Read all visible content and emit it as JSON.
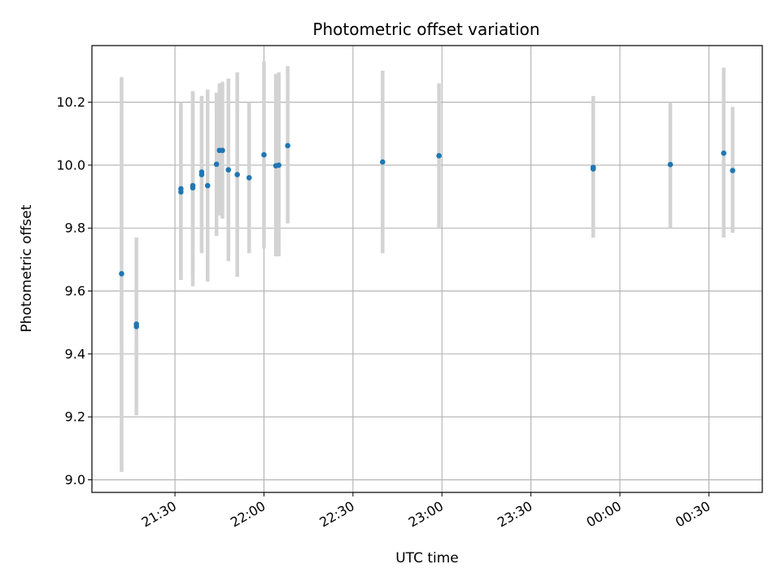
{
  "chart_data": {
    "type": "scatter",
    "title": "Photometric offset variation",
    "xlabel": "UTC time",
    "ylabel": "Photometric offset",
    "x_axis_type": "time",
    "xlim": [
      "21:02",
      "00:48"
    ],
    "ylim": [
      8.96,
      10.38
    ],
    "x_ticks": [
      {
        "time": "21:30",
        "label": "21:30"
      },
      {
        "time": "22:00",
        "label": "22:00"
      },
      {
        "time": "22:30",
        "label": "22:30"
      },
      {
        "time": "23:00",
        "label": "23:00"
      },
      {
        "time": "23:30",
        "label": "23:30"
      },
      {
        "time": "00:00",
        "label": "00:00"
      },
      {
        "time": "00:30",
        "label": "00:30"
      }
    ],
    "y_ticks": [
      9.0,
      9.2,
      9.4,
      9.6,
      9.8,
      10.0,
      10.2
    ],
    "y_tick_labels": [
      "9.0",
      "9.2",
      "9.4",
      "9.6",
      "9.8",
      "10.0",
      "10.2"
    ],
    "x_tick_rotation": "30°",
    "grid": true,
    "colors": {
      "points": "#1f77b4",
      "errorbars": "#d3d3d3",
      "grid": "#b0b0b0"
    },
    "points": [
      {
        "x": "21:12",
        "y": 9.655,
        "ylo": 9.025,
        "yhi": 10.28
      },
      {
        "x": "21:17",
        "y": 9.495,
        "ylo": 9.225,
        "yhi": 9.77
      },
      {
        "x": "21:17",
        "y": 9.487,
        "ylo": 9.205,
        "yhi": 9.77
      },
      {
        "x": "21:32",
        "y": 9.915,
        "ylo": 9.635,
        "yhi": 10.2
      },
      {
        "x": "21:32",
        "y": 9.925,
        "ylo": 9.665,
        "yhi": 10.19
      },
      {
        "x": "21:36",
        "y": 9.928,
        "ylo": 9.615,
        "yhi": 10.235
      },
      {
        "x": "21:36",
        "y": 9.935,
        "ylo": 9.645,
        "yhi": 10.23
      },
      {
        "x": "21:39",
        "y": 9.97,
        "ylo": 9.72,
        "yhi": 10.22
      },
      {
        "x": "21:39",
        "y": 9.978,
        "ylo": 9.73,
        "yhi": 10.22
      },
      {
        "x": "21:41",
        "y": 9.935,
        "ylo": 9.63,
        "yhi": 10.24
      },
      {
        "x": "21:44",
        "y": 10.003,
        "ylo": 9.775,
        "yhi": 10.23
      },
      {
        "x": "21:45",
        "y": 10.047,
        "ylo": 9.84,
        "yhi": 10.26
      },
      {
        "x": "21:46",
        "y": 10.047,
        "ylo": 9.83,
        "yhi": 10.265
      },
      {
        "x": "21:48",
        "y": 9.985,
        "ylo": 9.695,
        "yhi": 10.275
      },
      {
        "x": "21:51",
        "y": 9.97,
        "ylo": 9.645,
        "yhi": 10.295
      },
      {
        "x": "21:55",
        "y": 9.96,
        "ylo": 9.72,
        "yhi": 10.2
      },
      {
        "x": "22:00",
        "y": 10.033,
        "ylo": 9.735,
        "yhi": 10.33
      },
      {
        "x": "22:04",
        "y": 9.998,
        "ylo": 9.71,
        "yhi": 10.29
      },
      {
        "x": "22:05",
        "y": 10.0,
        "ylo": 9.71,
        "yhi": 10.295
      },
      {
        "x": "22:08",
        "y": 10.062,
        "ylo": 9.815,
        "yhi": 10.315
      },
      {
        "x": "22:40",
        "y": 10.01,
        "ylo": 9.72,
        "yhi": 10.3
      },
      {
        "x": "22:59",
        "y": 10.03,
        "ylo": 9.8,
        "yhi": 10.26
      },
      {
        "x": "23:51",
        "y": 9.988,
        "ylo": 9.77,
        "yhi": 10.22
      },
      {
        "x": "23:51",
        "y": 9.993,
        "ylo": 9.77,
        "yhi": 10.215
      },
      {
        "x": "00:17",
        "y": 10.002,
        "ylo": 9.8,
        "yhi": 10.2
      },
      {
        "x": "00:35",
        "y": 10.038,
        "ylo": 9.77,
        "yhi": 10.31
      },
      {
        "x": "00:38",
        "y": 9.983,
        "ylo": 9.785,
        "yhi": 10.185
      }
    ]
  }
}
